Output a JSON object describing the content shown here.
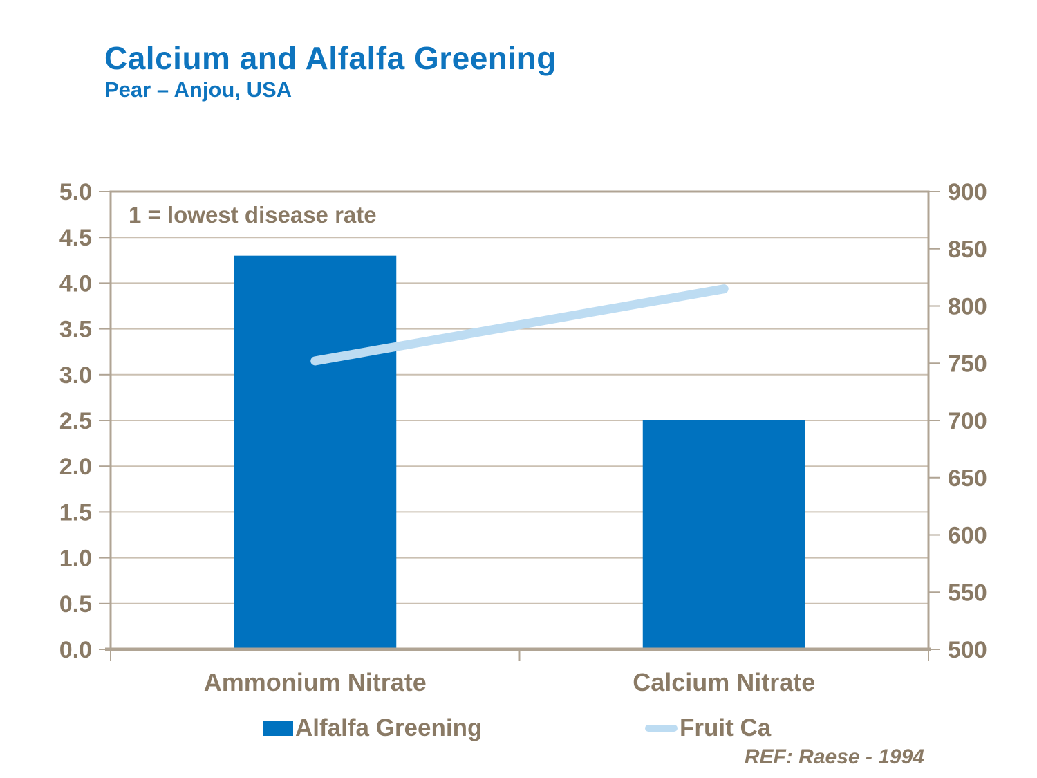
{
  "page": {
    "title": "Calcium and Alfalfa Greening",
    "subtitle": "Pear – Anjou, USA",
    "reference": "REF: Raese - 1994"
  },
  "colors": {
    "title_blue": "#0E74BE",
    "bar_blue": "#0072BF",
    "line_light_blue": "#BDDCF2",
    "text_brown": "#8A7A65",
    "gridline_tan": "#CBC0B2",
    "axis_border_tan": "#B0A494",
    "background": "#FFFFFF"
  },
  "chart_data": {
    "type": "bar",
    "subtype": "bar-and-line-dual-axis",
    "title": "Calcium and Alfalfa Greening",
    "subtitle": "Pear – Anjou, USA",
    "annotation": "1 = lowest disease rate",
    "categories": [
      "Ammonium Nitrate",
      "Calcium Nitrate"
    ],
    "series": [
      {
        "name": "Alfalfa Greening",
        "type": "bar",
        "axis": "left",
        "values": [
          4.3,
          2.5
        ]
      },
      {
        "name": "Fruit Ca",
        "type": "line",
        "axis": "right",
        "values": [
          752,
          815
        ]
      }
    ],
    "left_axis": {
      "min": 0,
      "max": 5,
      "step": 0.5,
      "tick_labels": [
        "0.0",
        "0.5",
        "1.0",
        "1.5",
        "2.0",
        "2.5",
        "3.0",
        "3.5",
        "4.0",
        "4.5",
        "5.0"
      ]
    },
    "right_axis": {
      "min": 500,
      "max": 900,
      "step": 50,
      "tick_labels": [
        "500",
        "550",
        "600",
        "650",
        "700",
        "750",
        "800",
        "850",
        "900"
      ]
    },
    "grid": true,
    "legend_position": "bottom"
  }
}
